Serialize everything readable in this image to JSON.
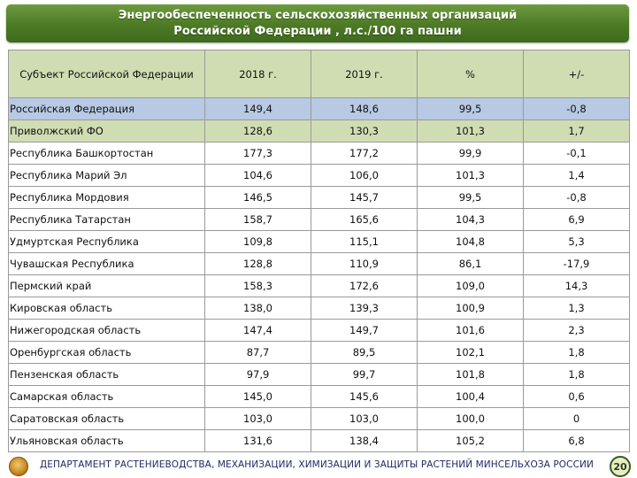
{
  "title": {
    "line1": "Энергообеспеченность сельскохозяйственных организаций",
    "line2": "Российской Федерации , л.с./100 га пашни"
  },
  "table": {
    "headers": [
      "Субъект Российской Федерации",
      "2018 г.",
      "2019 г.",
      "%",
      "+/-"
    ],
    "rows": [
      [
        "Российская Федерация",
        "149,4",
        "148,6",
        "99,5",
        "-0,8"
      ],
      [
        "Приволжский ФО",
        "128,6",
        "130,3",
        "101,3",
        "1,7"
      ],
      [
        "Республика Башкортостан",
        "177,3",
        "177,2",
        "99,9",
        "-0,1"
      ],
      [
        "Республика Марий Эл",
        "104,6",
        "106,0",
        "101,3",
        "1,4"
      ],
      [
        "Республика Мордовия",
        "146,5",
        "145,7",
        "99,5",
        "-0,8"
      ],
      [
        "Республика Татарстан",
        "158,7",
        "165,6",
        "104,3",
        "6,9"
      ],
      [
        "Удмуртская Республика",
        "109,8",
        "115,1",
        "104,8",
        "5,3"
      ],
      [
        "Чувашская Республика",
        "128,8",
        "110,9",
        "86,1",
        "-17,9"
      ],
      [
        "Пермский край",
        "158,3",
        "172,6",
        "109,0",
        "14,3"
      ],
      [
        "Кировская область",
        "138,0",
        "139,3",
        "100,9",
        "1,3"
      ],
      [
        "Нижегородская область",
        "147,4",
        "149,7",
        "101,6",
        "2,3"
      ],
      [
        "Оренбургская область",
        "87,7",
        "89,5",
        "102,1",
        "1,8"
      ],
      [
        "Пензенская область",
        "97,9",
        "99,7",
        "101,8",
        "1,8"
      ],
      [
        "Самарская область",
        "145,0",
        "145,6",
        "100,4",
        "0,6"
      ],
      [
        "Саратовская область",
        "103,0",
        "103,0",
        "100,0",
        "0"
      ],
      [
        "Ульяновская область",
        "131,6",
        "138,4",
        "105,2",
        "6,8"
      ]
    ]
  },
  "footer": {
    "department": "ДЕПАРТАМЕНТ РАСТЕНИЕВОДСТВА, МЕХАНИЗАЦИИ, ХИМИЗАЦИИ И ЗАЩИТЫ РАСТЕНИЙ МИНСЕЛЬХОЗА РОССИИ",
    "page_number": "20",
    "logo_icon": "emblem-icon"
  },
  "colors": {
    "title_bar": "#4c7a25",
    "header_fill": "#d0ddb2",
    "federation_row": "#b7c9e3",
    "district_row": "#d0ddb2"
  }
}
